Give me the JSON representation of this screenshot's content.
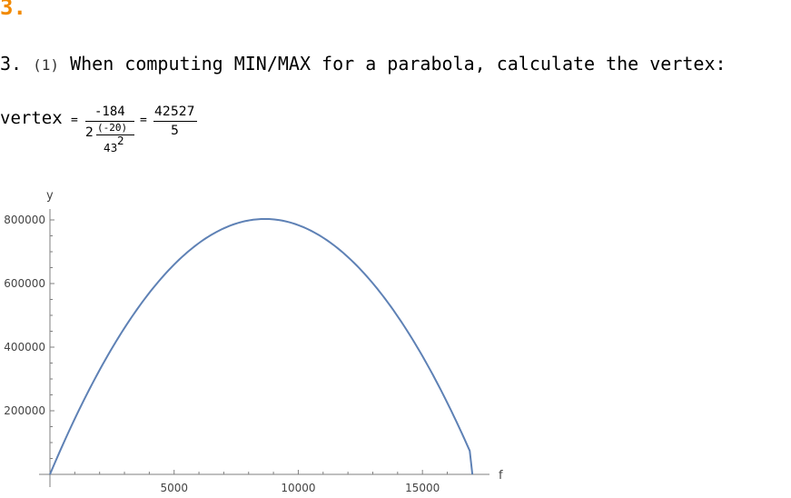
{
  "heading": "3.",
  "question": {
    "number": "3.",
    "part": "(1)",
    "text": "When computing MIN/MAX for a parabola, calculate the vertex:"
  },
  "formula": {
    "lhs": "vertex",
    "eq1": "=",
    "outer_numerator": "-184",
    "outer_coeff": "2",
    "inner_numerator": "(-20)",
    "inner_denominator_base": "43",
    "inner_denominator_exp": "2",
    "eq2": "=",
    "result_numerator": "42527",
    "result_denominator": "5"
  },
  "chart_data": {
    "type": "line",
    "xlabel": "f",
    "ylabel": "y",
    "xlim": [
      0,
      17700
    ],
    "ylim": [
      0,
      840000
    ],
    "x_ticks": [
      5000,
      10000,
      15000
    ],
    "x_tick_labels": [
      "5000",
      "10000",
      "15000"
    ],
    "y_ticks": [
      200000,
      400000,
      600000,
      800000
    ],
    "y_tick_labels": [
      "200000",
      "400000",
      "600000",
      "800000"
    ],
    "series": [
      {
        "color": "#5e81b5",
        "x": [
          0,
          1000,
          2000,
          3000,
          4000,
          5000,
          6000,
          7000,
          8000,
          8505.4,
          9000,
          10000,
          11000,
          12000,
          13000,
          14000,
          15000,
          16000,
          17010.8
        ],
        "values": [
          0,
          173000,
          327000,
          462000,
          578000,
          675000,
          740000,
          770000,
          780000,
          782200,
          780000,
          769000,
          742000,
          692000,
          618000,
          520000,
          400000,
          250000,
          0
        ]
      }
    ],
    "grid": false,
    "legend": "none"
  }
}
